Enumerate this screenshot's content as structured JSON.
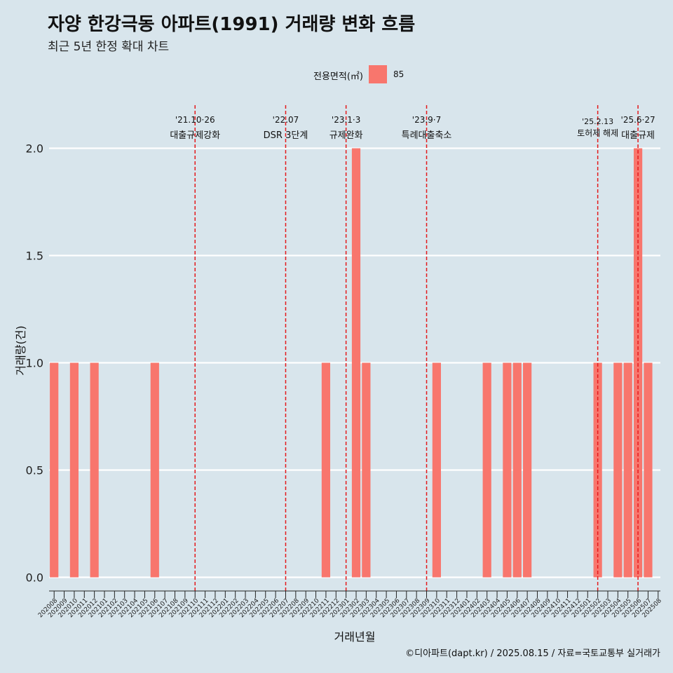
{
  "title": "자양 한강극동 아파트(1991) 거래량 변화 흐름",
  "subtitle": "최근 5년 한정 확대 차트",
  "caption": "©디아파트(dapt.kr) / 2025.08.15 / 자료=국토교통부 실거래가",
  "legend": {
    "title": "전용면적(㎡)",
    "items": [
      {
        "label": "85",
        "color": "#f8766d"
      }
    ]
  },
  "chart_data": {
    "type": "bar",
    "xlabel": "거래년월",
    "ylabel": "거래량(건)",
    "ylim": [
      0,
      2
    ],
    "yticks": [
      "0.0",
      "0.5",
      "1.0",
      "1.5",
      "2.0"
    ],
    "grid": true,
    "legend_position": "top",
    "categories": [
      "202008",
      "202009",
      "202010",
      "202011",
      "202012",
      "202101",
      "202102",
      "202103",
      "202104",
      "202105",
      "202106",
      "202107",
      "202108",
      "202109",
      "202110",
      "202111",
      "202112",
      "202201",
      "202202",
      "202203",
      "202204",
      "202205",
      "202206",
      "202207",
      "202208",
      "202209",
      "202210",
      "202211",
      "202212",
      "202301",
      "202302",
      "202303",
      "202304",
      "202305",
      "202306",
      "202307",
      "202308",
      "202309",
      "202310",
      "202311",
      "202312",
      "202401",
      "202402",
      "202403",
      "202404",
      "202405",
      "202406",
      "202407",
      "202408",
      "202409",
      "202410",
      "202411",
      "202412",
      "202501",
      "202502",
      "202503",
      "202504",
      "202505",
      "202506",
      "202507",
      "202508"
    ],
    "series": [
      {
        "name": "85",
        "color": "#f8766d",
        "values": [
          1,
          0,
          1,
          0,
          1,
          0,
          0,
          0,
          0,
          0,
          1,
          0,
          0,
          0,
          0,
          0,
          0,
          0,
          0,
          0,
          0,
          0,
          0,
          0,
          0,
          0,
          0,
          1,
          0,
          0,
          2,
          1,
          0,
          0,
          0,
          0,
          0,
          0,
          1,
          0,
          0,
          0,
          0,
          1,
          0,
          1,
          1,
          1,
          0,
          0,
          0,
          0,
          0,
          0,
          1,
          0,
          1,
          1,
          2,
          1,
          0
        ]
      }
    ],
    "annotations": [
      {
        "date": "'21.10·26",
        "label": "대출규제강화",
        "x": "202110"
      },
      {
        "date": "'22.07",
        "label": "DSR 3단계",
        "x": "202207"
      },
      {
        "date": "'23.1·3",
        "label": "규제완화",
        "x": "202301"
      },
      {
        "date": "'23.9·7",
        "label": "특례대출축소",
        "x": "202309"
      },
      {
        "date": "'25.2.13",
        "label": "토허제 해제",
        "x": "202502"
      },
      {
        "date": "'25.6·27",
        "label": "대출규제",
        "x": "202506"
      }
    ]
  }
}
